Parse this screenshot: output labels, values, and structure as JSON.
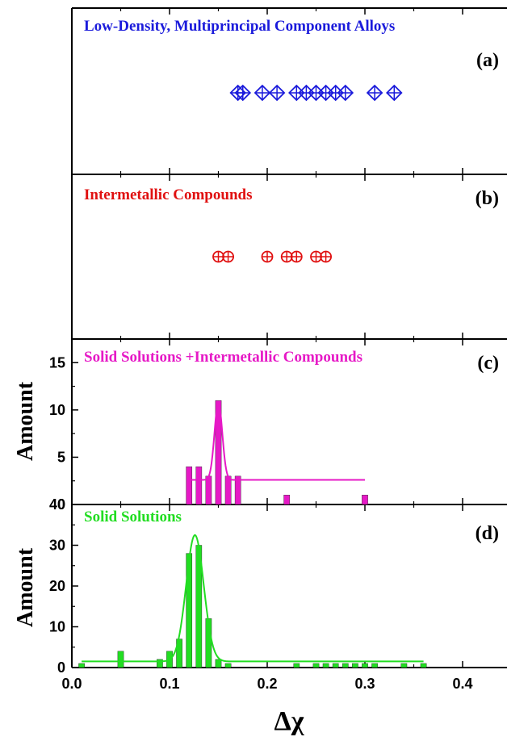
{
  "figure": {
    "xlabel": "Δχ",
    "xticks": [
      "0.0",
      "0.1",
      "0.2",
      "0.3",
      "0.4"
    ],
    "xlim": [
      0.0,
      0.45
    ],
    "colors": {
      "a": "#1a1adb",
      "b": "#e01010",
      "c": "#e619c6",
      "d": "#22dd22"
    }
  },
  "chart_data": [
    {
      "type": "scatter",
      "panel": "(a)",
      "title": "Low-Density, Multiprincipal Component Alloys",
      "marker": "diamond-plus",
      "x": [
        0.17,
        0.175,
        0.195,
        0.21,
        0.23,
        0.24,
        0.25,
        0.26,
        0.27,
        0.28,
        0.31,
        0.33
      ]
    },
    {
      "type": "scatter",
      "panel": "(b)",
      "title": "Intermetallic Compounds",
      "marker": "circle-plus",
      "x": [
        0.15,
        0.16,
        0.2,
        0.22,
        0.23,
        0.25,
        0.26
      ]
    },
    {
      "type": "bar",
      "panel": "(c)",
      "title": "Solid Solutions +Intermetallic Compounds",
      "ylabel": "Amount",
      "ylim": [
        0,
        17.5
      ],
      "yticks": [
        "0",
        "5",
        "10",
        "15"
      ],
      "bar_width": 0.006,
      "x": [
        0.12,
        0.13,
        0.14,
        0.15,
        0.16,
        0.17,
        0.22,
        0.3
      ],
      "values": [
        4,
        4,
        3,
        11,
        3,
        3,
        1,
        1
      ],
      "fit": {
        "type": "gaussian",
        "baseline": 2.6,
        "center": 0.15,
        "height": 8.2,
        "sigma": 0.004,
        "range": [
          0.12,
          0.3
        ]
      }
    },
    {
      "type": "bar",
      "panel": "(d)",
      "title": "Solid Solutions",
      "ylabel": "Amount",
      "ylim": [
        0,
        40
      ],
      "yticks": [
        "0",
        "10",
        "20",
        "30",
        "40"
      ],
      "bar_width": 0.006,
      "x": [
        0.01,
        0.05,
        0.09,
        0.1,
        0.11,
        0.12,
        0.13,
        0.14,
        0.15,
        0.16,
        0.23,
        0.25,
        0.26,
        0.27,
        0.28,
        0.29,
        0.3,
        0.31,
        0.34,
        0.36
      ],
      "values": [
        1,
        4,
        2,
        4,
        7,
        28,
        30,
        12,
        2,
        1,
        1,
        1,
        1,
        1,
        1,
        1,
        1,
        1,
        1,
        1
      ],
      "fit": {
        "type": "gaussian",
        "baseline": 1.5,
        "center": 0.126,
        "height": 31,
        "sigma": 0.009,
        "range": [
          0.01,
          0.36
        ]
      }
    }
  ]
}
